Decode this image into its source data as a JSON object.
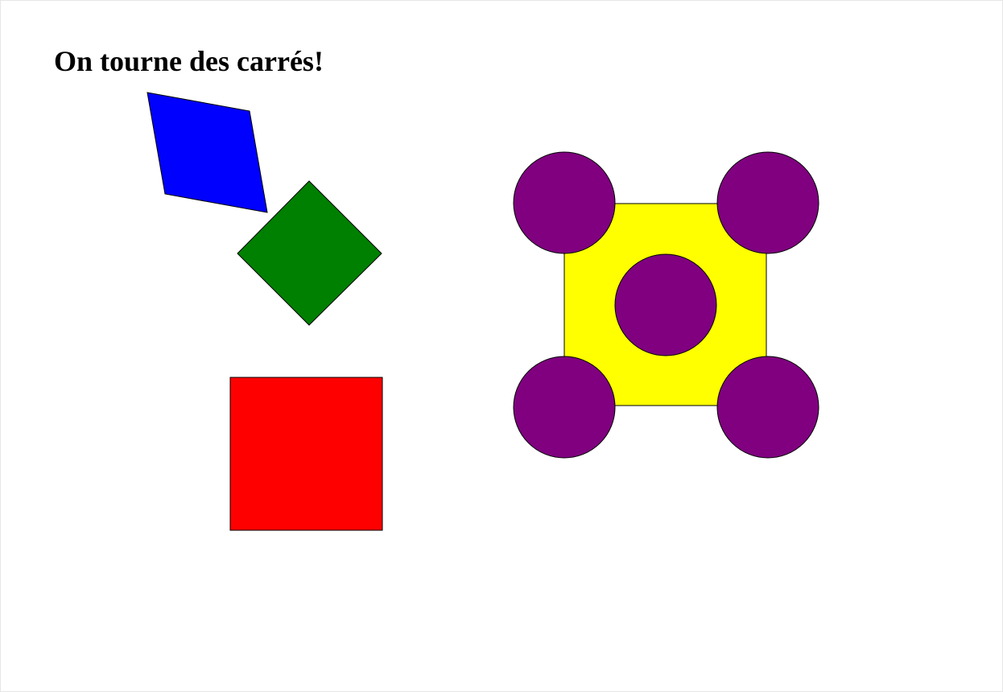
{
  "page": {
    "title": "On tourne des carrés!"
  },
  "shapes": {
    "blue_square": {
      "color": "#0000ff",
      "rotation_deg": 10
    },
    "green_square": {
      "color": "#008000",
      "rotation_deg": 45
    },
    "red_square": {
      "color": "#ff0000",
      "rotation_deg": 0
    },
    "yellow_square": {
      "color": "#ffff00"
    },
    "purple_circles": {
      "color": "#800080",
      "count": 5
    }
  },
  "colors": {
    "background": "#ffffff",
    "outline": "#000000"
  }
}
